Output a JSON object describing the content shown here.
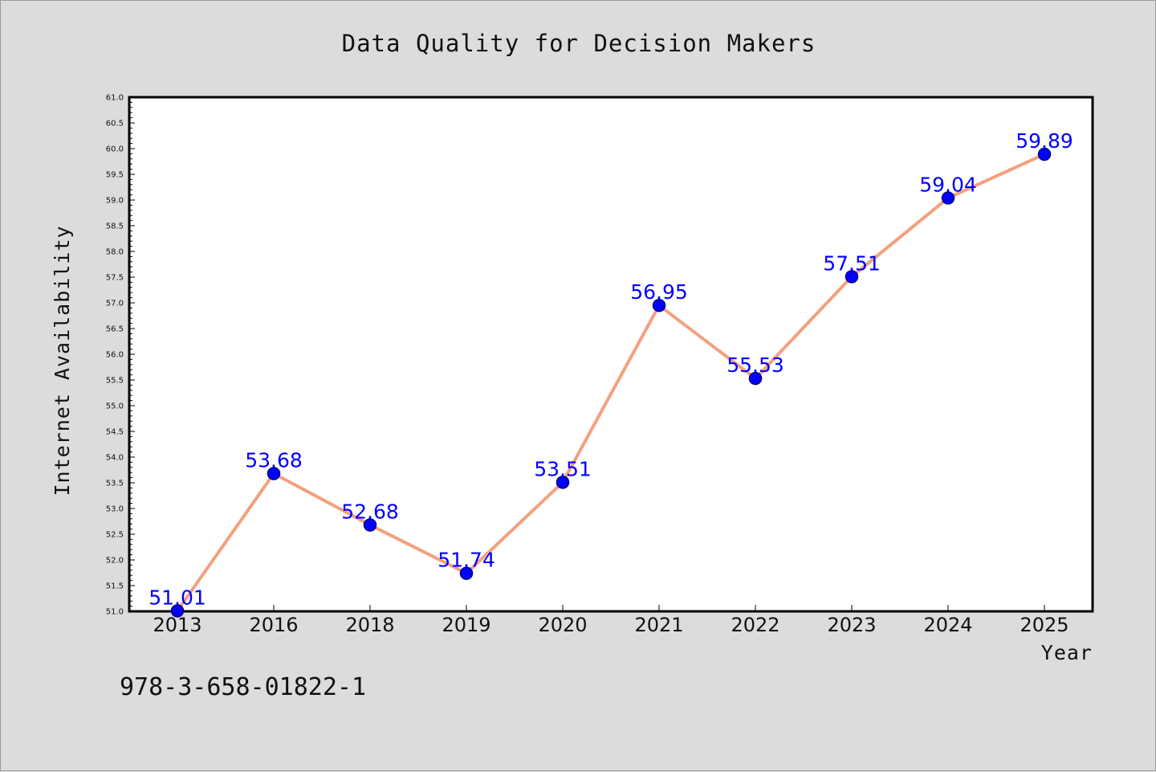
{
  "chart_data": {
    "type": "line",
    "title": "Data Quality for Decision Makers",
    "xlabel": "Year",
    "ylabel": "Internet Availability",
    "categories": [
      "2013",
      "2016",
      "2018",
      "2019",
      "2020",
      "2021",
      "2022",
      "2023",
      "2024",
      "2025"
    ],
    "series": [
      {
        "values": [
          51.01,
          53.68,
          52.68,
          51.74,
          53.51,
          56.95,
          55.53,
          57.51,
          59.04,
          59.89
        ],
        "data_labels": [
          "51.01",
          "53.68",
          "52.68",
          "51.74",
          "53.51",
          "56.95",
          "55.53",
          "57.51",
          "59.04",
          "59.89"
        ]
      }
    ],
    "ylim": [
      51.0,
      61.0
    ],
    "yticks": [
      "51.0",
      "51.5",
      "52.0",
      "52.5",
      "53.0",
      "53.5",
      "54.0",
      "54.5",
      "55.0",
      "55.5",
      "56.0",
      "56.5",
      "57.0",
      "57.5",
      "58.0",
      "58.5",
      "59.0",
      "59.5",
      "60.0",
      "60.5",
      "61.0"
    ],
    "grid": false,
    "legend": "none",
    "colors": {
      "line": "#f4a07e",
      "marker_fill": "#0000ff",
      "marker_edge": "#000080",
      "data_label": "#0000ff",
      "plot_background": "#ffffff",
      "figure_background": "#dcdcdc"
    }
  },
  "footnote": "978-3-658-01822-1"
}
